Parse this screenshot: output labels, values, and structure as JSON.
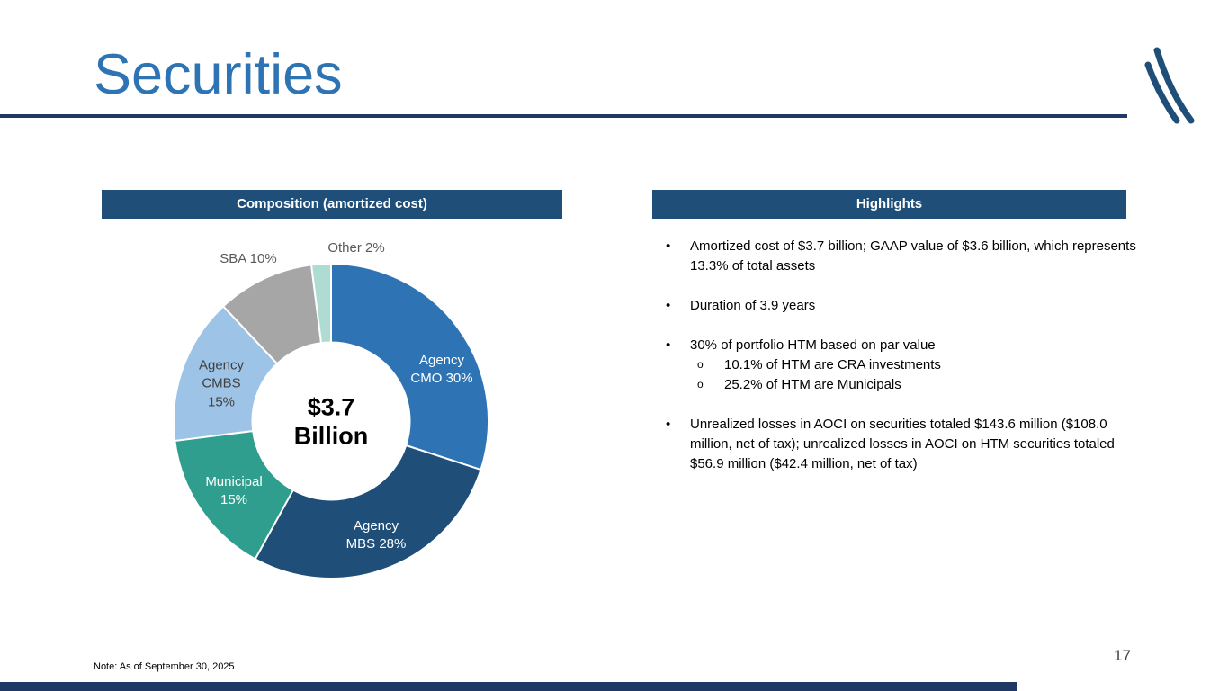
{
  "slide": {
    "title": "Securities",
    "page_number": "17",
    "note": "Note:  As of September 30, 2025",
    "accent_color": "#2E74B5",
    "rule_color": "#1F3864",
    "header_bar_color": "#1F4E79"
  },
  "composition": {
    "header": "Composition (amortized cost)"
  },
  "highlights": {
    "header": "Highlights",
    "bullet_char": "•",
    "sub_bullet_char": "o",
    "bullets": [
      {
        "text": "Amortized cost of $3.7 billion; GAAP value of $3.6 billion, which represents 13.3% of total assets",
        "sub": []
      },
      {
        "text": "Duration of 3.9 years",
        "sub": []
      },
      {
        "text": "30% of portfolio HTM based on par value",
        "sub": [
          "10.1% of HTM are CRA investments",
          "25.2% of HTM are Municipals"
        ]
      },
      {
        "text": "Unrealized losses in AOCI on securities totaled $143.6 million ($108.0 million, net of tax); unrealized losses in AOCI on HTM securities totaled $56.9 million ($42.4 million, net of tax)",
        "sub": []
      }
    ]
  },
  "chart_data": {
    "type": "pie",
    "title": "Composition (amortized cost)",
    "center_label": "$3.7\nBillion",
    "donut": true,
    "inner_radius_ratio": 0.5,
    "start_angle_deg": 0,
    "direction": "clockwise",
    "slices": [
      {
        "label": "Agency CMO",
        "value": 30,
        "display": "Agency\nCMO 30%",
        "color": "#2E74B5",
        "label_color": "#FFFFFF"
      },
      {
        "label": "Agency MBS",
        "value": 28,
        "display": "Agency\nMBS 28%",
        "color": "#1F4E79",
        "label_color": "#FFFFFF"
      },
      {
        "label": "Municipal",
        "value": 15,
        "display": "Municipal\n15%",
        "color": "#2F9E8E",
        "label_color": "#FFFFFF"
      },
      {
        "label": "Agency CMBS",
        "value": 15,
        "display": "Agency\nCMBS\n15%",
        "color": "#9DC3E6",
        "label_color": "#404040"
      },
      {
        "label": "SBA",
        "value": 10,
        "display": "SBA 10%",
        "color": "#A6A6A6",
        "label_color": "#595959"
      },
      {
        "label": "Other",
        "value": 2,
        "display": "Other 2%",
        "color": "#AEDCD3",
        "label_color": "#595959"
      }
    ]
  }
}
